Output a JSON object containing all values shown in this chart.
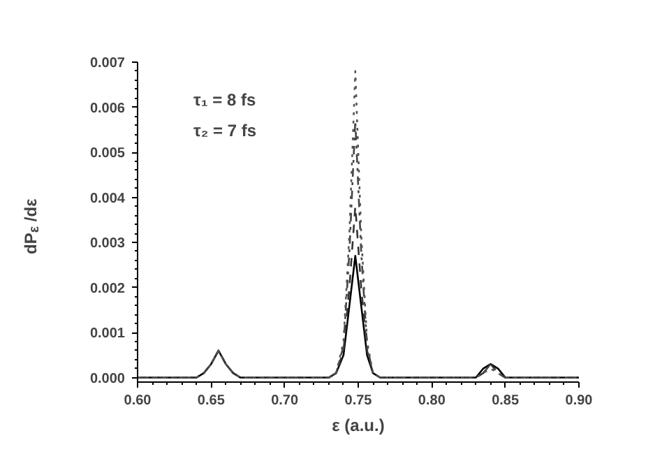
{
  "chart_data": {
    "type": "line",
    "xlabel": "ε (a.u.)",
    "ylabel": "dP$_{ε}$ /dε",
    "annotations": [
      "τ₁ = 8 fs",
      "τ₂ = 7 fs"
    ],
    "x": [
      0.6,
      0.64,
      0.645,
      0.65,
      0.655,
      0.66,
      0.665,
      0.67,
      0.73,
      0.735,
      0.74,
      0.744,
      0.748,
      0.752,
      0.756,
      0.76,
      0.765,
      0.82,
      0.83,
      0.835,
      0.84,
      0.845,
      0.85,
      0.86,
      0.9
    ],
    "series": [
      {
        "color": "#000000",
        "line_style": "solid",
        "values": [
          0,
          0,
          0.0001,
          0.0003,
          0.0006,
          0.0003,
          0.0001,
          0,
          0,
          0.0001,
          0.0005,
          0.0016,
          0.0027,
          0.0016,
          0.0005,
          0.0001,
          0,
          0,
          0,
          0.0002,
          0.0003,
          0.0002,
          0,
          0,
          0
        ]
      },
      {
        "color": "#333333",
        "line_style": "dashed",
        "values": [
          0,
          0,
          0.0001,
          0.0003,
          0.0006,
          0.0003,
          0.0001,
          0,
          0,
          0.0001,
          0.0006,
          0.002,
          0.0038,
          0.002,
          0.0006,
          0.0001,
          0,
          0,
          0,
          0.0001,
          0.0003,
          0.0001,
          0,
          0,
          0
        ]
      },
      {
        "color": "#444444",
        "line_style": "dashdot",
        "values": [
          0,
          0,
          0.0001,
          0.0003,
          0.0006,
          0.0003,
          0.0001,
          0,
          0,
          0.0001,
          0.0007,
          0.0028,
          0.0057,
          0.0028,
          0.0007,
          0.0001,
          0,
          0,
          0,
          0.0001,
          0.0003,
          0.0001,
          0,
          0,
          0
        ]
      },
      {
        "color": "#555555",
        "line_style": "dotted",
        "values": [
          0,
          0,
          0.0001,
          0.0003,
          0.0006,
          0.0003,
          0.0001,
          0,
          0,
          0.0001,
          0.0008,
          0.0032,
          0.0068,
          0.0032,
          0.0008,
          0.0001,
          0,
          0,
          0,
          0.0001,
          0.0002,
          0.0001,
          0,
          0,
          0
        ]
      }
    ],
    "xlim": [
      0.6,
      0.9
    ],
    "xticks": [
      {
        "value": 0.6,
        "label": "0.60"
      },
      {
        "value": 0.65,
        "label": "0.65"
      },
      {
        "value": 0.7,
        "label": "0.70"
      },
      {
        "value": 0.75,
        "label": "0.75"
      },
      {
        "value": 0.8,
        "label": "0.80"
      },
      {
        "value": 0.85,
        "label": "0.85"
      },
      {
        "value": 0.9,
        "label": "0.90"
      }
    ],
    "ylim": [
      -0.0001,
      0.007
    ],
    "yticks": [
      {
        "value": 0,
        "label": "0.000"
      },
      {
        "value": 0.001,
        "label": "0.001"
      },
      {
        "value": 0.002,
        "label": "0.002"
      },
      {
        "value": 0.003,
        "label": "0.003"
      },
      {
        "value": 0.004,
        "label": "0.004"
      },
      {
        "value": 0.005,
        "label": "0.005"
      },
      {
        "value": 0.006,
        "label": "0.006"
      },
      {
        "value": 0.007,
        "label": "0.007"
      }
    ],
    "grid": false,
    "marker": "none"
  }
}
